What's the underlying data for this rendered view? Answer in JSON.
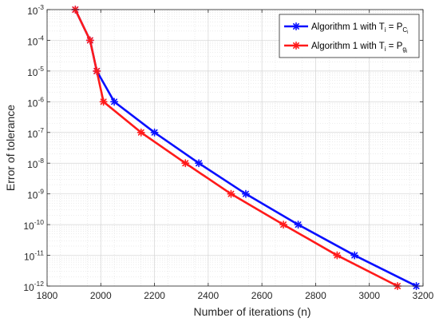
{
  "chart_data": {
    "type": "line",
    "xlabel": "Number of iterations (n)",
    "ylabel": "Error of tolerance",
    "xlim": [
      1800,
      3200
    ],
    "ylim_log10": [
      -12,
      -3
    ],
    "y_scale": "log",
    "grid": true,
    "minor_grid": true,
    "legend_position": "top-right",
    "x_ticks": [
      "1800",
      "2000",
      "2200",
      "2400",
      "2600",
      "2800",
      "3000",
      "3200"
    ],
    "y_ticks": [
      {
        "base": "10",
        "exp": "-3",
        "value": -3
      },
      {
        "base": "10",
        "exp": "-4",
        "value": -4
      },
      {
        "base": "10",
        "exp": "-5",
        "value": -5
      },
      {
        "base": "10",
        "exp": "-6",
        "value": -6
      },
      {
        "base": "10",
        "exp": "-7",
        "value": -7
      },
      {
        "base": "10",
        "exp": "-8",
        "value": -8
      },
      {
        "base": "10",
        "exp": "-9",
        "value": -9
      },
      {
        "base": "10",
        "exp": "-10",
        "value": -10
      },
      {
        "base": "10",
        "exp": "-11",
        "value": -11
      },
      {
        "base": "10",
        "exp": "-12",
        "value": -12
      }
    ],
    "series": [
      {
        "legend": {
          "prefix": "Algorithm 1 with T",
          "sub1": "i",
          "mid": " = P",
          "sub2": "C",
          "sub3": "i"
        },
        "color": "#0a10ff",
        "x": [
          1905,
          1960,
          1985,
          2050,
          2200,
          2365,
          2540,
          2735,
          2945,
          3175
        ],
        "y": [
          0.001,
          0.0001,
          1e-05,
          1e-06,
          1e-07,
          1e-08,
          1e-09,
          1e-10,
          1e-11,
          1e-12
        ]
      },
      {
        "legend": {
          "prefix": "Algorithm 1 with T",
          "sub1": "i",
          "mid": " = P",
          "sub2": "g",
          "sub3": "i"
        },
        "color": "#ff1a1a",
        "x": [
          1905,
          1960,
          1985,
          2010,
          2150,
          2315,
          2485,
          2680,
          2880,
          3105
        ],
        "y": [
          0.001,
          0.0001,
          1e-05,
          1e-06,
          1e-07,
          1e-08,
          1e-09,
          1e-10,
          1e-11,
          1e-12
        ]
      }
    ]
  }
}
